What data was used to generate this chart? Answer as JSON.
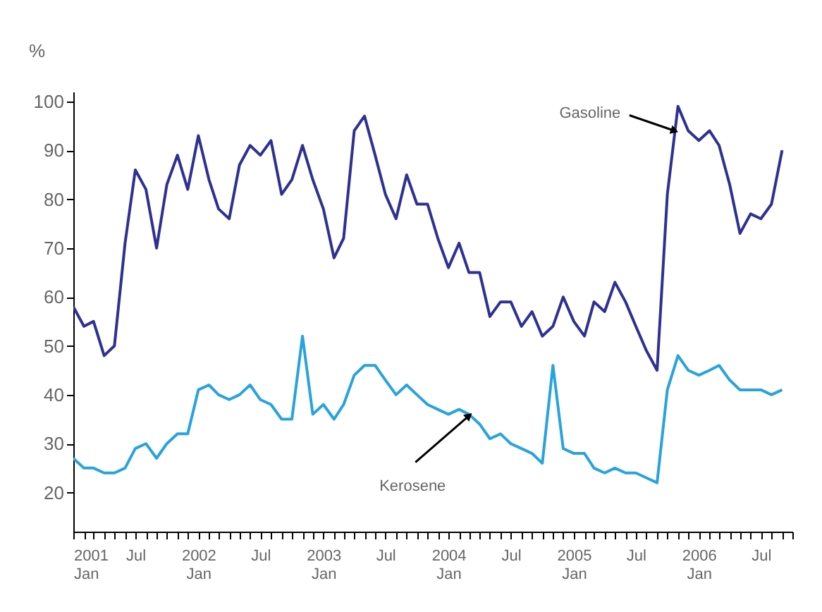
{
  "chart_data": {
    "type": "line",
    "ylabel": "%",
    "x": [
      "2001-01",
      "2001-02",
      "2001-03",
      "2001-04",
      "2001-05",
      "2001-06",
      "2001-07",
      "2001-08",
      "2001-09",
      "2001-10",
      "2001-11",
      "2001-12",
      "2002-01",
      "2002-02",
      "2002-03",
      "2002-04",
      "2002-05",
      "2002-06",
      "2002-07",
      "2002-08",
      "2002-09",
      "2002-10",
      "2002-11",
      "2002-12",
      "2003-01",
      "2003-02",
      "2003-03",
      "2003-04",
      "2003-05",
      "2003-06",
      "2003-07",
      "2003-08",
      "2003-09",
      "2003-10",
      "2003-11",
      "2003-12",
      "2004-01",
      "2004-02",
      "2004-03",
      "2004-04",
      "2004-05",
      "2004-06",
      "2004-07",
      "2004-08",
      "2004-09",
      "2004-10",
      "2004-11",
      "2004-12",
      "2005-01",
      "2005-02",
      "2005-03",
      "2005-04",
      "2005-05",
      "2005-06",
      "2005-07",
      "2005-08",
      "2005-09",
      "2005-10",
      "2005-11",
      "2005-12",
      "2006-01",
      "2006-02",
      "2006-03",
      "2006-04",
      "2006-05",
      "2006-06",
      "2006-07",
      "2006-08",
      "2006-09"
    ],
    "series": [
      {
        "color": "#2e3192",
        "values": [
          58,
          54,
          55,
          48,
          50,
          71,
          86,
          82,
          70,
          83,
          89,
          82,
          93,
          84,
          78,
          76,
          87,
          91,
          89,
          92,
          81,
          84,
          91,
          84,
          78,
          68,
          72,
          94,
          97,
          89,
          81,
          76,
          85,
          79,
          79,
          72,
          66,
          71,
          65,
          65,
          56,
          59,
          59,
          54,
          57,
          52,
          54,
          60,
          55,
          52,
          59,
          57,
          63,
          59,
          54,
          49,
          45,
          81,
          99,
          94,
          92,
          94,
          91,
          83,
          73,
          77,
          76,
          79,
          90
        ]
      },
      {
        "color": "#29a3dd",
        "values": [
          27,
          25,
          25,
          24,
          24,
          25,
          29,
          30,
          27,
          30,
          32,
          32,
          41,
          42,
          40,
          39,
          40,
          42,
          39,
          38,
          35,
          35,
          52,
          36,
          38,
          35,
          38,
          44,
          46,
          46,
          43,
          40,
          42,
          40,
          38,
          37,
          36,
          37,
          36,
          34,
          31,
          32,
          30,
          29,
          28,
          26,
          46,
          29,
          28,
          28,
          25,
          24,
          25,
          24,
          24,
          23,
          22,
          41,
          48,
          45,
          44,
          45,
          46,
          43,
          41,
          41,
          41,
          40,
          41
        ]
      }
    ],
    "ylim": [
      12,
      102
    ],
    "yticks": [
      20,
      30,
      40,
      50,
      60,
      70,
      80,
      90,
      100
    ],
    "xlim": [
      "2001-01",
      "2006-10"
    ],
    "xticks": [
      {
        "value": "2001-01",
        "label": "2001\nJan"
      },
      {
        "value": "2001-02",
        "label": null
      },
      {
        "value": "2001-03",
        "label": null
      },
      {
        "value": "2001-04",
        "label": null
      },
      {
        "value": "2001-05",
        "label": null
      },
      {
        "value": "2001-06",
        "label": null
      },
      {
        "value": "2001-07",
        "label": "Jul"
      },
      {
        "value": "2001-08",
        "label": null
      },
      {
        "value": "2001-09",
        "label": null
      },
      {
        "value": "2001-10",
        "label": null
      },
      {
        "value": "2001-11",
        "label": null
      },
      {
        "value": "2001-12",
        "label": null
      },
      {
        "value": "2002-01",
        "label": "2002\nJan"
      },
      {
        "value": "2002-02",
        "label": null
      },
      {
        "value": "2002-03",
        "label": null
      },
      {
        "value": "2002-04",
        "label": null
      },
      {
        "value": "2002-05",
        "label": null
      },
      {
        "value": "2002-06",
        "label": null
      },
      {
        "value": "2002-07",
        "label": "Jul"
      },
      {
        "value": "2002-08",
        "label": null
      },
      {
        "value": "2002-09",
        "label": null
      },
      {
        "value": "2002-10",
        "label": null
      },
      {
        "value": "2002-11",
        "label": null
      },
      {
        "value": "2002-12",
        "label": null
      },
      {
        "value": "2003-01",
        "label": "2003\nJan"
      },
      {
        "value": "2003-02",
        "label": null
      },
      {
        "value": "2003-03",
        "label": null
      },
      {
        "value": "2003-04",
        "label": null
      },
      {
        "value": "2003-05",
        "label": null
      },
      {
        "value": "2003-06",
        "label": null
      },
      {
        "value": "2003-07",
        "label": "Jul"
      },
      {
        "value": "2003-08",
        "label": null
      },
      {
        "value": "2003-09",
        "label": null
      },
      {
        "value": "2003-10",
        "label": null
      },
      {
        "value": "2003-11",
        "label": null
      },
      {
        "value": "2003-12",
        "label": null
      },
      {
        "value": "2004-01",
        "label": "2004\nJan"
      },
      {
        "value": "2004-02",
        "label": null
      },
      {
        "value": "2004-03",
        "label": null
      },
      {
        "value": "2004-04",
        "label": null
      },
      {
        "value": "2004-05",
        "label": null
      },
      {
        "value": "2004-06",
        "label": null
      },
      {
        "value": "2004-07",
        "label": "Jul"
      },
      {
        "value": "2004-08",
        "label": null
      },
      {
        "value": "2004-09",
        "label": null
      },
      {
        "value": "2004-10",
        "label": null
      },
      {
        "value": "2004-11",
        "label": null
      },
      {
        "value": "2004-12",
        "label": null
      },
      {
        "value": "2005-01",
        "label": "2005\nJan"
      },
      {
        "value": "2005-02",
        "label": null
      },
      {
        "value": "2005-03",
        "label": null
      },
      {
        "value": "2005-04",
        "label": null
      },
      {
        "value": "2005-05",
        "label": null
      },
      {
        "value": "2005-06",
        "label": null
      },
      {
        "value": "2005-07",
        "label": "Jul"
      },
      {
        "value": "2005-08",
        "label": null
      },
      {
        "value": "2005-09",
        "label": null
      },
      {
        "value": "2005-10",
        "label": null
      },
      {
        "value": "2005-11",
        "label": null
      },
      {
        "value": "2005-12",
        "label": null
      },
      {
        "value": "2006-01",
        "label": "2006\nJan"
      },
      {
        "value": "2006-02",
        "label": null
      },
      {
        "value": "2006-03",
        "label": null
      },
      {
        "value": "2006-04",
        "label": null
      },
      {
        "value": "2006-05",
        "label": null
      },
      {
        "value": "2006-06",
        "label": null
      },
      {
        "value": "2006-07",
        "label": "Jul"
      },
      {
        "value": "2006-08",
        "label": null
      },
      {
        "value": "2006-09",
        "label": null
      },
      {
        "value": "2006-10",
        "label": null
      }
    ],
    "annotations": [
      {
        "text": "Gasoline",
        "x": "2005-10-22",
        "y": 94
      },
      {
        "text": "Kerosene",
        "x": "2004-03",
        "y": 35.7
      }
    ],
    "grid": false,
    "legend": false
  }
}
